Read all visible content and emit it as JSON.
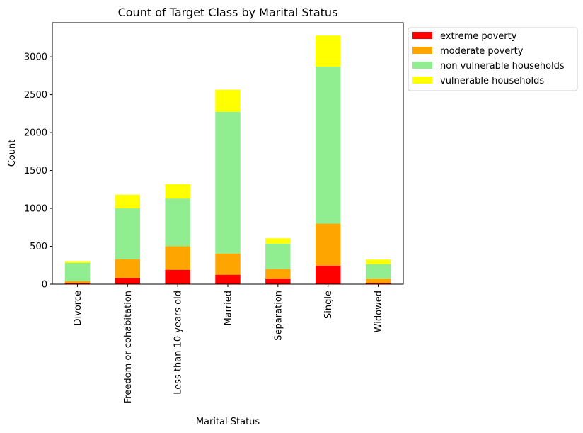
{
  "chart_data": {
    "type": "bar",
    "stacked": true,
    "title": "Count of Target Class by Marital Status",
    "xlabel": "Marital Status",
    "ylabel": "Count",
    "ylim": [
      0,
      3450
    ],
    "yticks": [
      0,
      500,
      1000,
      1500,
      2000,
      2500,
      3000
    ],
    "categories": [
      "Divorce",
      "Freedom or cohabitation",
      "Less than 10 years old",
      "Married",
      "Separation",
      "Single",
      "Widowed"
    ],
    "series": [
      {
        "name": "extreme poverty",
        "color": "#ff0000",
        "values": [
          15,
          85,
          190,
          125,
          75,
          245,
          15
        ]
      },
      {
        "name": "moderate poverty",
        "color": "#ffa500",
        "values": [
          25,
          245,
          310,
          280,
          125,
          555,
          60
        ]
      },
      {
        "name": "non vulnerable households",
        "color": "#90ee90",
        "values": [
          240,
          670,
          630,
          1870,
          335,
          2070,
          190
        ]
      },
      {
        "name": "vulnerable households",
        "color": "#ffff00",
        "values": [
          25,
          180,
          190,
          290,
          70,
          410,
          60
        ]
      }
    ],
    "legend_position": "outside-top-right",
    "grid": false
  }
}
